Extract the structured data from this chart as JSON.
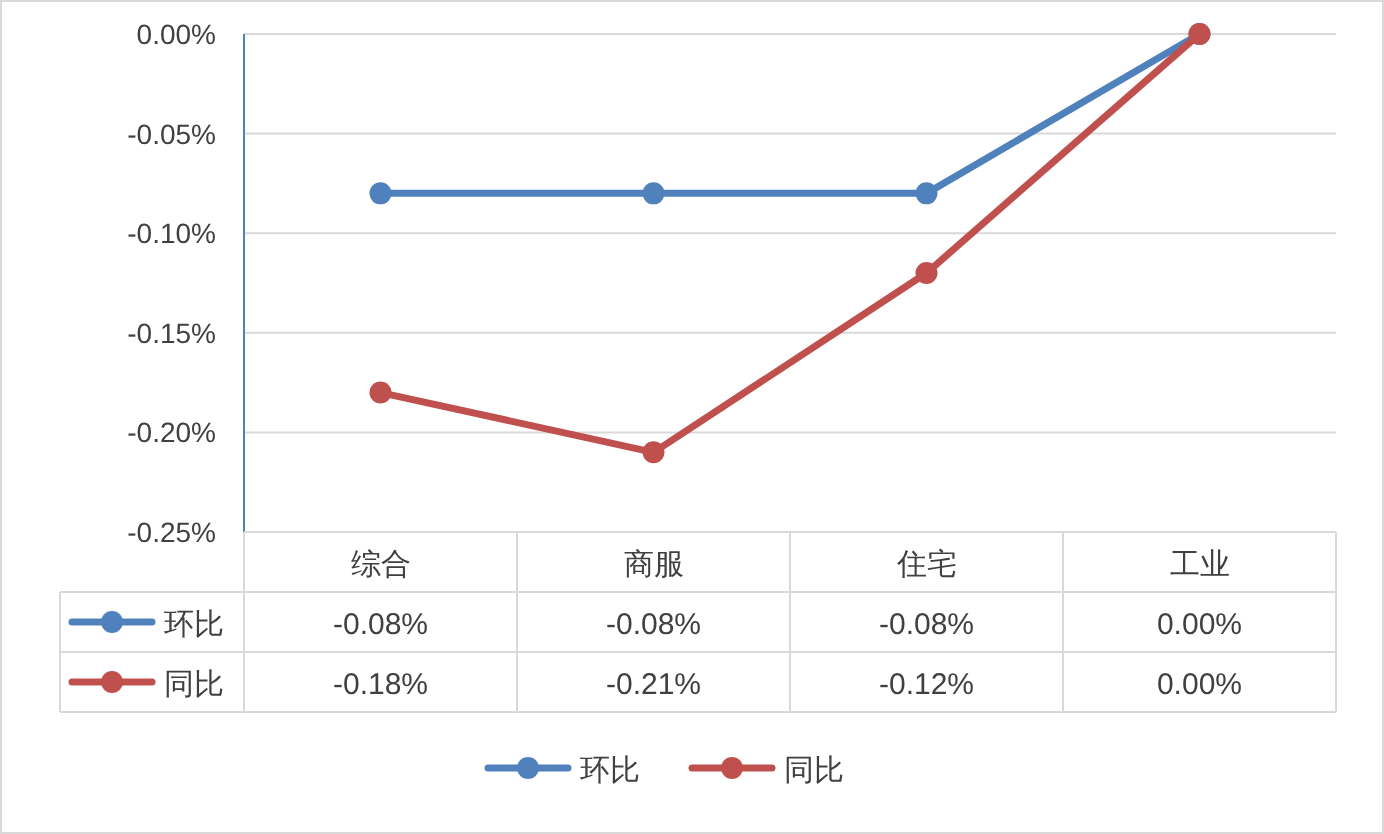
{
  "chart_data": {
    "type": "line",
    "categories": [
      "综合",
      "商服",
      "住宅",
      "工业"
    ],
    "series": [
      {
        "name": "环比",
        "color": "#4f81bd",
        "values": [
          -0.08,
          -0.08,
          -0.08,
          0.0
        ],
        "value_labels": [
          "-0.08%",
          "-0.08%",
          "-0.08%",
          "0.00%"
        ]
      },
      {
        "name": "同比",
        "color": "#c0504d",
        "values": [
          -0.18,
          -0.21,
          -0.12,
          0.0
        ],
        "value_labels": [
          "-0.18%",
          "-0.21%",
          "-0.12%",
          "0.00%"
        ]
      }
    ],
    "ylim": [
      -0.25,
      0
    ],
    "yticks": [
      {
        "value": 0,
        "label": "0.00%"
      },
      {
        "value": -0.05,
        "label": "-0.05%"
      },
      {
        "value": -0.1,
        "label": "-0.10%"
      },
      {
        "value": -0.15,
        "label": "-0.15%"
      },
      {
        "value": -0.2,
        "label": "-0.20%"
      },
      {
        "value": -0.25,
        "label": "-0.25%"
      }
    ],
    "grid": "y",
    "legend": "bottom",
    "marker": "circle"
  }
}
